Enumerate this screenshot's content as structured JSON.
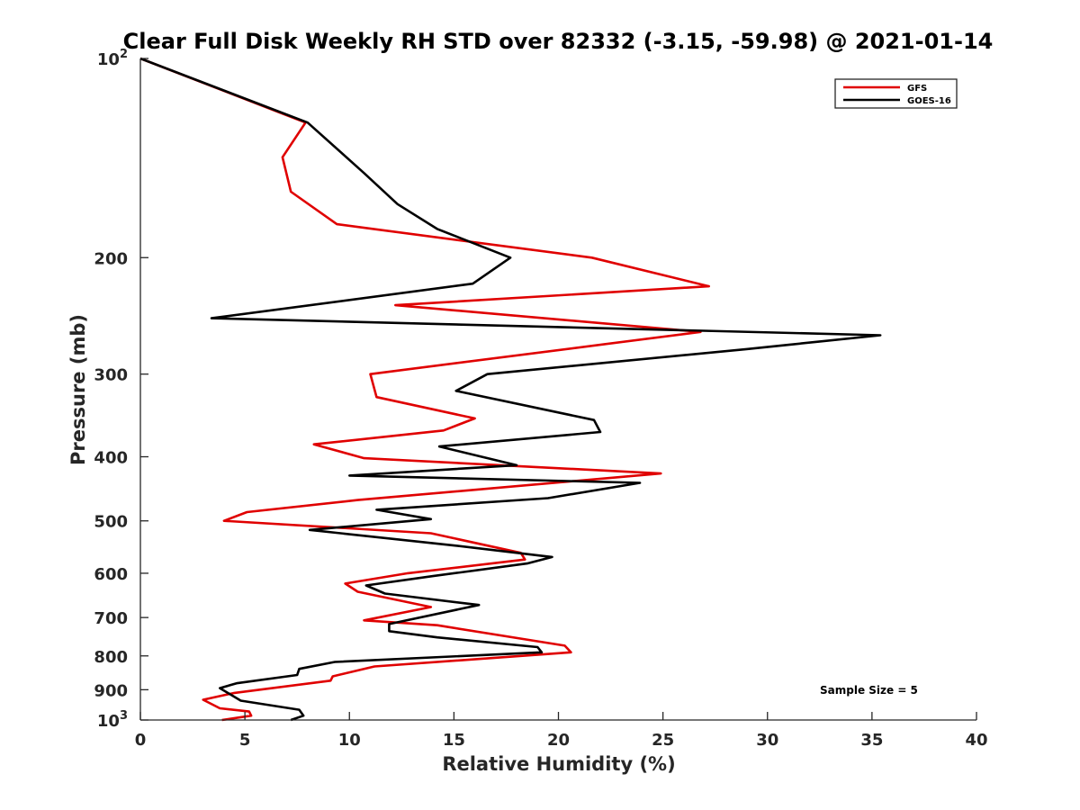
{
  "chart_data": {
    "type": "line",
    "title": "Clear Full Disk Weekly RH STD over 82332 (-3.15, -59.98) @ 2021-01-14",
    "xlabel": "Relative Humidity (%)",
    "ylabel": "Pressure (mb)",
    "xlim": [
      0,
      40
    ],
    "ylim": [
      100,
      1000
    ],
    "yscale": "log",
    "y_reversed": true,
    "x_ticks": [
      0,
      5,
      10,
      15,
      20,
      25,
      30,
      35,
      40
    ],
    "x_tick_labels": [
      "0",
      "5",
      "10",
      "15",
      "20",
      "25",
      "30",
      "35",
      "40"
    ],
    "y_ticks": [
      100,
      200,
      300,
      400,
      500,
      600,
      700,
      800,
      900,
      1000
    ],
    "y_tick_labels": [
      {
        "base": "10",
        "exp": "2"
      },
      {
        "text": "200"
      },
      {
        "text": "300"
      },
      {
        "text": "400"
      },
      {
        "text": "500"
      },
      {
        "text": "600"
      },
      {
        "text": "700"
      },
      {
        "text": "800"
      },
      {
        "text": "900"
      },
      {
        "base": "10",
        "exp": "3"
      }
    ],
    "grid": false,
    "legend_position": "top-right",
    "annotation": "Sample Size = 5",
    "series": [
      {
        "name": "GFS",
        "color": "#e00000",
        "points": [
          [
            0,
            100
          ],
          [
            7.9,
            125
          ],
          [
            6.8,
            141
          ],
          [
            7.2,
            159
          ],
          [
            9.4,
            178
          ],
          [
            21.6,
            200
          ],
          [
            27.2,
            221
          ],
          [
            12.2,
            236
          ],
          [
            26.8,
            259
          ],
          [
            11.0,
            300
          ],
          [
            11.3,
            325
          ],
          [
            16.0,
            350
          ],
          [
            14.5,
            365
          ],
          [
            8.3,
            383
          ],
          [
            10.7,
            402
          ],
          [
            24.9,
            424
          ],
          [
            10.4,
            465
          ],
          [
            5.1,
            485
          ],
          [
            4.0,
            500
          ],
          [
            13.9,
            522
          ],
          [
            18.2,
            559
          ],
          [
            18.4,
            572
          ],
          [
            12.8,
            600
          ],
          [
            9.8,
            622
          ],
          [
            10.4,
            640
          ],
          [
            13.9,
            675
          ],
          [
            10.7,
            707
          ],
          [
            14.2,
            719
          ],
          [
            20.3,
            772
          ],
          [
            20.6,
            790
          ],
          [
            11.2,
            830
          ],
          [
            9.2,
            859
          ],
          [
            9.1,
            872
          ],
          [
            4.5,
            910
          ],
          [
            3.0,
            932
          ],
          [
            3.8,
            960
          ],
          [
            5.2,
            971
          ],
          [
            5.3,
            985
          ],
          [
            3.9,
            1000
          ]
        ]
      },
      {
        "name": "GOES-16",
        "color": "#000000",
        "points": [
          [
            0,
            100
          ],
          [
            8.0,
            125
          ],
          [
            10.7,
            149
          ],
          [
            12.3,
            166
          ],
          [
            14.2,
            181
          ],
          [
            17.7,
            200
          ],
          [
            15.9,
            219
          ],
          [
            3.4,
            247
          ],
          [
            35.4,
            262
          ],
          [
            29.0,
            275
          ],
          [
            16.6,
            300
          ],
          [
            15.1,
            318
          ],
          [
            21.7,
            352
          ],
          [
            22.0,
            367
          ],
          [
            14.3,
            386
          ],
          [
            18.0,
            412
          ],
          [
            10.0,
            427
          ],
          [
            23.9,
            438
          ],
          [
            19.5,
            462
          ],
          [
            11.3,
            481
          ],
          [
            13.9,
            497
          ],
          [
            8.1,
            516
          ],
          [
            15.1,
            545
          ],
          [
            19.7,
            567
          ],
          [
            18.5,
            580
          ],
          [
            14.0,
            606
          ],
          [
            10.8,
            626
          ],
          [
            11.7,
            644
          ],
          [
            16.2,
            670
          ],
          [
            11.9,
            716
          ],
          [
            11.9,
            734
          ],
          [
            14.2,
            750
          ],
          [
            19.0,
            776
          ],
          [
            19.2,
            790
          ],
          [
            9.3,
            817
          ],
          [
            7.6,
            837
          ],
          [
            7.5,
            855
          ],
          [
            4.6,
            880
          ],
          [
            3.8,
            895
          ],
          [
            4.8,
            935
          ],
          [
            7.6,
            965
          ],
          [
            7.8,
            985
          ],
          [
            7.2,
            1000
          ]
        ]
      }
    ]
  }
}
